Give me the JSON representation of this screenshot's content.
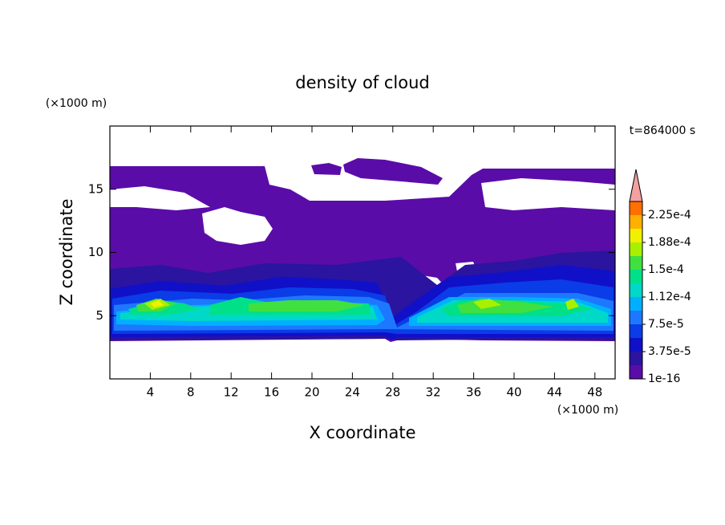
{
  "chart_data": {
    "type": "contour",
    "title": "density of cloud",
    "x_label": "X coordinate",
    "y_label": "Z coordinate",
    "x_unit": "(×1000 m)",
    "y_unit": "(×1000 m)",
    "annotation": "t=864000 s",
    "xlim": [
      0,
      50
    ],
    "ylim": [
      0,
      20
    ],
    "xticks": [
      4,
      8,
      12,
      16,
      20,
      24,
      28,
      32,
      36,
      40,
      44,
      48
    ],
    "yticks": [
      5,
      10,
      15
    ],
    "colorbar": {
      "clim": [
        1e-16,
        0.00024375
      ],
      "colors": [
        "#5a0ca8",
        "#2a14a0",
        "#1010c8",
        "#0a3ce8",
        "#1e78ff",
        "#00b0ff",
        "#00d8c8",
        "#00e088",
        "#40e040",
        "#a8f000",
        "#f0f000",
        "#ffb000",
        "#ff7000"
      ],
      "extend_color": "#f4a0a0",
      "ticks": [
        {
          "value": 1e-16,
          "label": "1e-16"
        },
        {
          "value": 3.75e-05,
          "label": "3.75e-5"
        },
        {
          "value": 7.5e-05,
          "label": "7.5e-5"
        },
        {
          "value": 0.0001125,
          "label": "1.12e-4"
        },
        {
          "value": 0.00015,
          "label": "1.5e-4"
        },
        {
          "value": 0.0001875,
          "label": "1.88e-4"
        },
        {
          "value": 0.000225,
          "label": "2.25e-4"
        }
      ]
    }
  }
}
